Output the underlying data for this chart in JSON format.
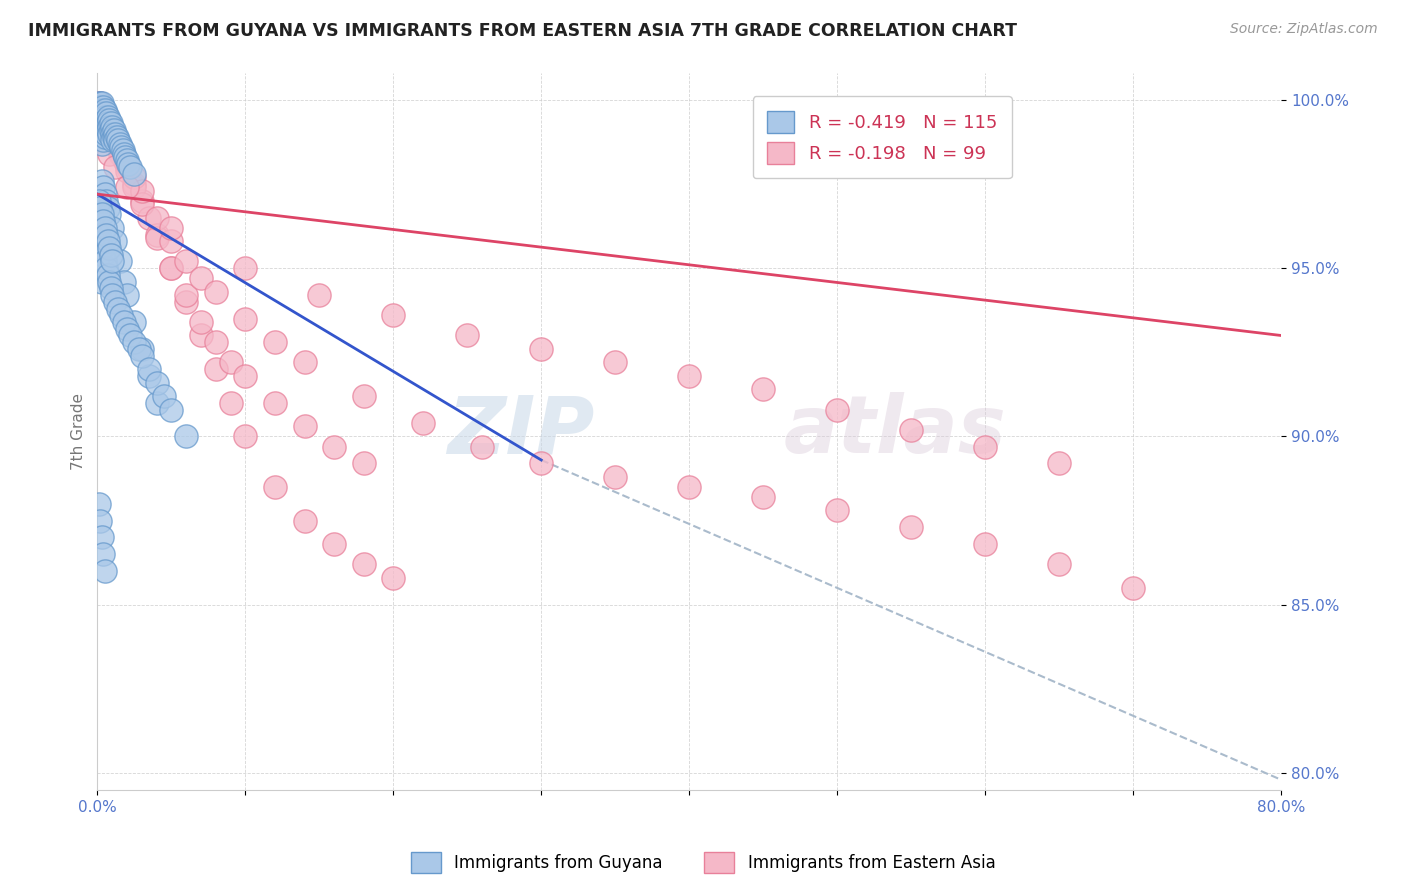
{
  "title": "IMMIGRANTS FROM GUYANA VS IMMIGRANTS FROM EASTERN ASIA 7TH GRADE CORRELATION CHART",
  "source_text": "Source: ZipAtlas.com",
  "ylabel": "7th Grade",
  "xlim": [
    0.0,
    0.8
  ],
  "ylim": [
    0.795,
    1.008
  ],
  "xticks": [
    0.0,
    0.1,
    0.2,
    0.3,
    0.4,
    0.5,
    0.6,
    0.7,
    0.8
  ],
  "xticklabels": [
    "0.0%",
    "",
    "",
    "",
    "",
    "",
    "",
    "",
    "80.0%"
  ],
  "yticks": [
    0.8,
    0.85,
    0.9,
    0.95,
    1.0
  ],
  "yticklabels": [
    "80.0%",
    "85.0%",
    "90.0%",
    "95.0%",
    "100.0%"
  ],
  "blue_color": "#aac8e8",
  "blue_edge": "#6699cc",
  "pink_color": "#f5b8c8",
  "pink_edge": "#e8809a",
  "blue_line_color": "#3355cc",
  "pink_line_color": "#dd4466",
  "dashed_line_color": "#aabbcc",
  "legend_R1": "-0.419",
  "legend_N1": "115",
  "legend_R2": "-0.198",
  "legend_N2": "99",
  "legend_label1": "Immigrants from Guyana",
  "legend_label2": "Immigrants from Eastern Asia",
  "watermark_zip": "ZIP",
  "watermark_atlas": "atlas",
  "blue_line_x0": 0.0,
  "blue_line_y0": 0.972,
  "blue_line_x1": 0.3,
  "blue_line_y1": 0.893,
  "pink_line_x0": 0.0,
  "pink_line_x1": 0.8,
  "pink_line_y0": 0.972,
  "pink_line_y1": 0.93,
  "dash_line_x0": 0.3,
  "dash_line_y0": 0.893,
  "dash_line_x1": 0.8,
  "dash_line_y1": 0.798,
  "blue_x": [
    0.001,
    0.001,
    0.001,
    0.001,
    0.001,
    0.002,
    0.002,
    0.002,
    0.002,
    0.002,
    0.002,
    0.002,
    0.003,
    0.003,
    0.003,
    0.003,
    0.003,
    0.003,
    0.003,
    0.004,
    0.004,
    0.004,
    0.004,
    0.004,
    0.004,
    0.005,
    0.005,
    0.005,
    0.005,
    0.005,
    0.006,
    0.006,
    0.006,
    0.006,
    0.007,
    0.007,
    0.007,
    0.008,
    0.008,
    0.008,
    0.009,
    0.009,
    0.01,
    0.01,
    0.01,
    0.011,
    0.011,
    0.012,
    0.012,
    0.013,
    0.014,
    0.015,
    0.016,
    0.017,
    0.018,
    0.019,
    0.02,
    0.021,
    0.022,
    0.025,
    0.003,
    0.004,
    0.005,
    0.006,
    0.007,
    0.008,
    0.01,
    0.012,
    0.015,
    0.018,
    0.02,
    0.025,
    0.03,
    0.035,
    0.04,
    0.001,
    0.001,
    0.002,
    0.002,
    0.003,
    0.003,
    0.003,
    0.004,
    0.004,
    0.005,
    0.005,
    0.006,
    0.006,
    0.007,
    0.007,
    0.008,
    0.008,
    0.009,
    0.009,
    0.01,
    0.01,
    0.012,
    0.014,
    0.016,
    0.018,
    0.02,
    0.022,
    0.025,
    0.028,
    0.03,
    0.035,
    0.04,
    0.045,
    0.05,
    0.06,
    0.001,
    0.002,
    0.003,
    0.004,
    0.005
  ],
  "blue_y": [
    0.999,
    0.998,
    0.997,
    0.996,
    0.993,
    0.999,
    0.998,
    0.997,
    0.995,
    0.993,
    0.991,
    0.989,
    0.999,
    0.997,
    0.995,
    0.993,
    0.991,
    0.989,
    0.987,
    0.998,
    0.996,
    0.994,
    0.992,
    0.99,
    0.988,
    0.997,
    0.995,
    0.993,
    0.991,
    0.989,
    0.996,
    0.994,
    0.992,
    0.99,
    0.995,
    0.993,
    0.991,
    0.994,
    0.992,
    0.99,
    0.993,
    0.991,
    0.992,
    0.99,
    0.988,
    0.991,
    0.989,
    0.99,
    0.988,
    0.989,
    0.988,
    0.987,
    0.986,
    0.985,
    0.984,
    0.983,
    0.982,
    0.981,
    0.98,
    0.978,
    0.976,
    0.974,
    0.972,
    0.97,
    0.968,
    0.966,
    0.962,
    0.958,
    0.952,
    0.946,
    0.942,
    0.934,
    0.926,
    0.918,
    0.91,
    0.97,
    0.96,
    0.968,
    0.958,
    0.966,
    0.956,
    0.946,
    0.964,
    0.954,
    0.962,
    0.952,
    0.96,
    0.95,
    0.958,
    0.948,
    0.956,
    0.946,
    0.954,
    0.944,
    0.952,
    0.942,
    0.94,
    0.938,
    0.936,
    0.934,
    0.932,
    0.93,
    0.928,
    0.926,
    0.924,
    0.92,
    0.916,
    0.912,
    0.908,
    0.9,
    0.88,
    0.875,
    0.87,
    0.865,
    0.86
  ],
  "pink_x": [
    0.001,
    0.002,
    0.003,
    0.004,
    0.005,
    0.006,
    0.007,
    0.008,
    0.009,
    0.01,
    0.012,
    0.014,
    0.016,
    0.018,
    0.02,
    0.025,
    0.03,
    0.035,
    0.04,
    0.05,
    0.06,
    0.07,
    0.08,
    0.09,
    0.1,
    0.12,
    0.14,
    0.16,
    0.18,
    0.2,
    0.001,
    0.003,
    0.005,
    0.007,
    0.01,
    0.015,
    0.02,
    0.025,
    0.03,
    0.04,
    0.05,
    0.06,
    0.07,
    0.08,
    0.09,
    0.1,
    0.12,
    0.14,
    0.16,
    0.18,
    0.002,
    0.004,
    0.006,
    0.008,
    0.012,
    0.016,
    0.02,
    0.025,
    0.03,
    0.04,
    0.05,
    0.06,
    0.07,
    0.08,
    0.1,
    0.12,
    0.14,
    0.18,
    0.22,
    0.26,
    0.3,
    0.35,
    0.4,
    0.45,
    0.5,
    0.55,
    0.6,
    0.65,
    0.7,
    0.05,
    0.1,
    0.15,
    0.2,
    0.25,
    0.3,
    0.35,
    0.4,
    0.45,
    0.5,
    0.55,
    0.6,
    0.65,
    0.001,
    0.002,
    0.003,
    0.005,
    0.008,
    0.012,
    0.02
  ],
  "pink_y": [
    0.999,
    0.998,
    0.997,
    0.996,
    0.995,
    0.994,
    0.993,
    0.992,
    0.991,
    0.99,
    0.988,
    0.986,
    0.984,
    0.982,
    0.98,
    0.975,
    0.97,
    0.965,
    0.96,
    0.95,
    0.94,
    0.93,
    0.92,
    0.91,
    0.9,
    0.885,
    0.875,
    0.868,
    0.862,
    0.858,
    0.998,
    0.996,
    0.994,
    0.992,
    0.989,
    0.984,
    0.979,
    0.974,
    0.969,
    0.959,
    0.95,
    0.942,
    0.934,
    0.928,
    0.922,
    0.918,
    0.91,
    0.903,
    0.897,
    0.892,
    0.999,
    0.997,
    0.995,
    0.993,
    0.989,
    0.985,
    0.981,
    0.977,
    0.973,
    0.965,
    0.958,
    0.952,
    0.947,
    0.943,
    0.935,
    0.928,
    0.922,
    0.912,
    0.904,
    0.897,
    0.892,
    0.888,
    0.885,
    0.882,
    0.878,
    0.873,
    0.868,
    0.862,
    0.855,
    0.962,
    0.95,
    0.942,
    0.936,
    0.93,
    0.926,
    0.922,
    0.918,
    0.914,
    0.908,
    0.902,
    0.897,
    0.892,
    0.996,
    0.993,
    0.991,
    0.988,
    0.984,
    0.98,
    0.974
  ]
}
